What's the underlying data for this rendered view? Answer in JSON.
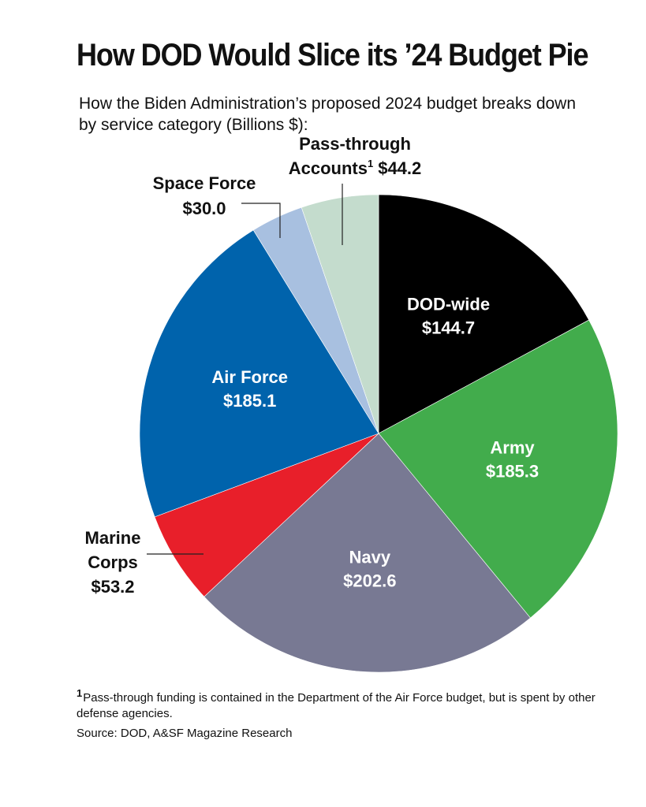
{
  "title": "How DOD Would Slice its ’24 Budget Pie",
  "subtitle": "How the Biden Administration’s proposed 2024 budget breaks down by service category (Billions $):",
  "chart_data": {
    "type": "pie",
    "unit": "Billions $",
    "slices": [
      {
        "label": "DOD-wide",
        "value": 144.7,
        "value_label": "$144.7",
        "color": "#000000",
        "text_color": "#ffffff"
      },
      {
        "label": "Army",
        "value": 185.3,
        "value_label": "$185.3",
        "color": "#42ac4c",
        "text_color": "#ffffff"
      },
      {
        "label": "Navy",
        "value": 202.6,
        "value_label": "$202.6",
        "color": "#787993",
        "text_color": "#ffffff"
      },
      {
        "label": "Marine Corps",
        "label_lines": [
          "Marine",
          "Corps"
        ],
        "value": 53.2,
        "value_label": "$53.2",
        "color": "#e81f2a",
        "text_color": "#111111"
      },
      {
        "label": "Air Force",
        "value": 185.1,
        "value_label": "$185.1",
        "color": "#0063ac",
        "text_color": "#ffffff"
      },
      {
        "label": "Space Force",
        "value": 30.0,
        "value_label": "$30.0",
        "color": "#a8c0e0",
        "text_color": "#111111"
      },
      {
        "label": "Pass-through Accounts",
        "label_lines": [
          "Pass-through",
          "Accounts"
        ],
        "footnote_mark": "1",
        "value": 44.2,
        "value_label": "$44.2",
        "color": "#c4dccd",
        "text_color": "#111111"
      }
    ]
  },
  "footnote": {
    "mark": "1",
    "text": "Pass-through funding is contained in the Department of the Air Force budget, but is spent by other defense agencies."
  },
  "source": "Source: DOD, A&SF Magazine Research"
}
